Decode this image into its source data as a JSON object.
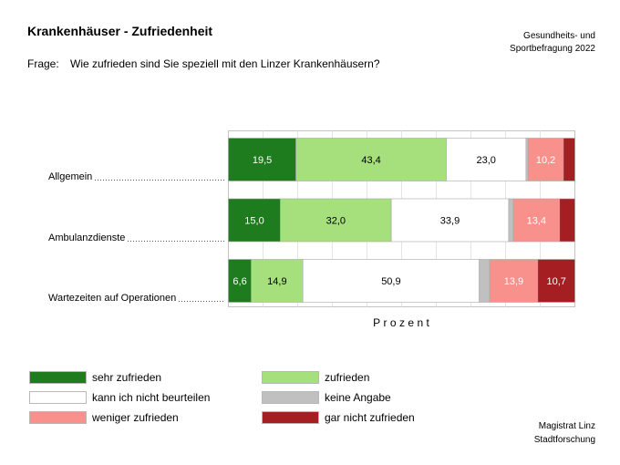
{
  "header": {
    "title": "Krankenhäuser - Zufriedenheit",
    "source_line1": "Gesundheits- und",
    "source_line2": "Sportbefragung 2022",
    "question_label": "Frage:",
    "question_text": "Wie zufrieden sind Sie speziell mit den Linzer Krankenhäusern?"
  },
  "chart_data": {
    "type": "bar",
    "orientation": "horizontal",
    "stacked": true,
    "categories": [
      "Allgemein",
      "Ambulanzdienste",
      "Wartezeiten auf Operationen"
    ],
    "series": [
      {
        "name": "sehr zufrieden",
        "color": "#1e7b1e",
        "label_color": "#ffffff",
        "values": [
          19.5,
          15.0,
          6.6
        ],
        "labels": [
          "19,5",
          "15,0",
          "6,6"
        ]
      },
      {
        "name": "zufrieden",
        "color": "#a5e07c",
        "label_color": "#000000",
        "values": [
          43.4,
          32.0,
          14.9
        ],
        "labels": [
          "43,4",
          "32,0",
          "14,9"
        ]
      },
      {
        "name": "kann ich nicht beurteilen",
        "color": "#ffffff",
        "label_color": "#000000",
        "values": [
          23.0,
          33.9,
          50.9
        ],
        "labels": [
          "23,0",
          "33,9",
          "50,9"
        ]
      },
      {
        "name": "keine Angabe",
        "color": "#c0c0c0",
        "label_color": "#000000",
        "values": [
          0.6,
          1.3,
          3.0
        ],
        "labels": [
          null,
          null,
          null
        ]
      },
      {
        "name": "weniger zufrieden",
        "color": "#f8918c",
        "label_color": "#ffffff",
        "values": [
          10.2,
          13.4,
          13.9
        ],
        "labels": [
          "10,2",
          "13,4",
          "13,9"
        ]
      },
      {
        "name": "gar nicht zufrieden",
        "color": "#a41e22",
        "label_color": "#ffffff",
        "values": [
          3.3,
          4.4,
          10.7
        ],
        "labels": [
          null,
          null,
          "10,7"
        ]
      }
    ],
    "xlabel": "Prozent",
    "xlim": [
      0,
      100
    ],
    "grid": true,
    "legend_position": "bottom"
  },
  "footer": {
    "line1": "Magistrat Linz",
    "line2": "Stadtforschung"
  }
}
